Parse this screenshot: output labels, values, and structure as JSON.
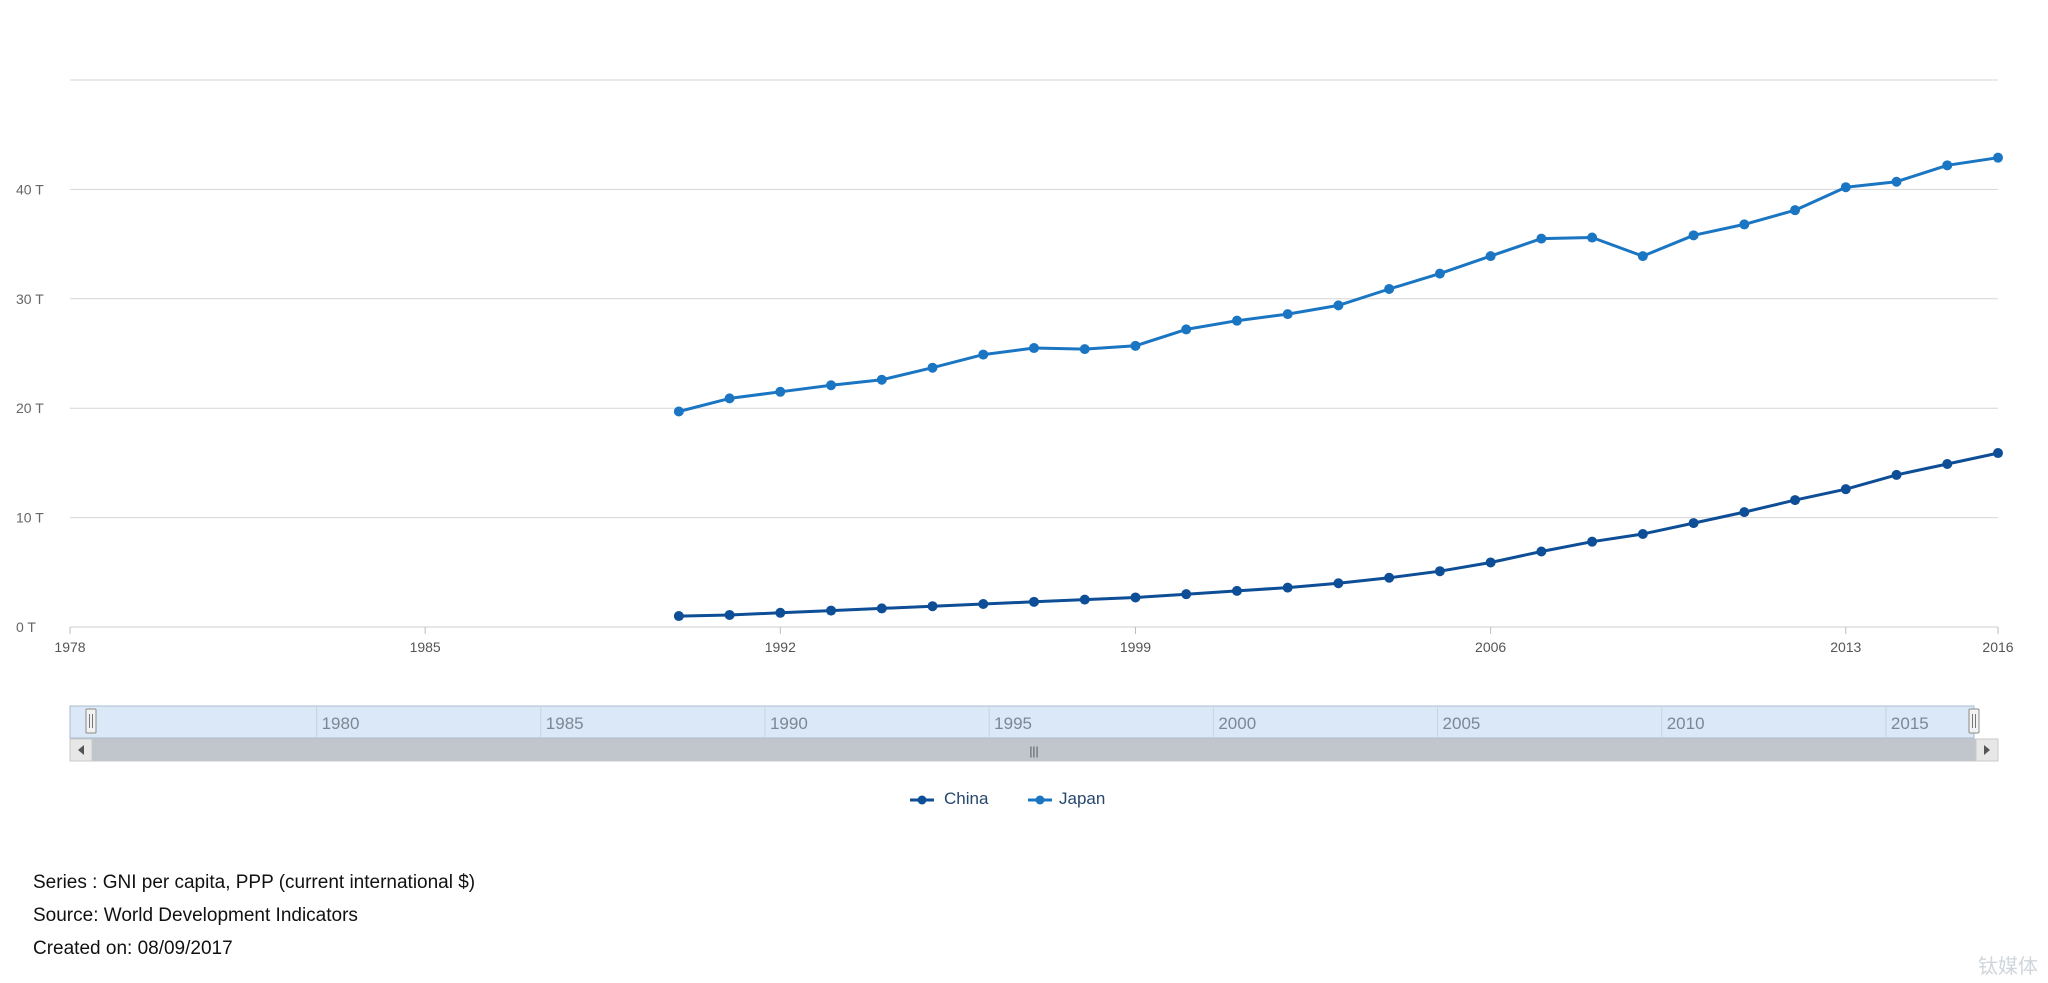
{
  "chart_data": {
    "type": "line",
    "x_axis": {
      "ticks": [
        1978,
        1985,
        1992,
        1999,
        2006,
        2013,
        2016
      ]
    },
    "y_axis": {
      "ticks": [
        "0 T",
        "10 T",
        "20 T",
        "30 T",
        "40 T"
      ],
      "ylim": [
        0,
        50000
      ]
    },
    "grid": true,
    "legend_position": "bottom-center",
    "x": [
      1990,
      1991,
      1992,
      1993,
      1994,
      1995,
      1996,
      1997,
      1998,
      1999,
      2000,
      2001,
      2002,
      2003,
      2004,
      2005,
      2006,
      2007,
      2008,
      2009,
      2010,
      2011,
      2012,
      2013,
      2014,
      2015,
      2016
    ],
    "series": [
      {
        "name": "China",
        "color": "#0d4e96",
        "values": [
          1000,
          1100,
          1300,
          1500,
          1700,
          1900,
          2100,
          2300,
          2500,
          2700,
          3000,
          3300,
          3600,
          4000,
          4500,
          5100,
          5900,
          6900,
          7800,
          8500,
          9500,
          10500,
          11600,
          12600,
          13900,
          14900,
          15900
        ]
      },
      {
        "name": "Japan",
        "color": "#1a76c2",
        "values": [
          19700,
          20900,
          21500,
          22100,
          22600,
          23700,
          24900,
          25500,
          25400,
          25700,
          27200,
          28000,
          28600,
          29400,
          30900,
          32300,
          33900,
          35500,
          35600,
          33900,
          35800,
          36800,
          38100,
          40200,
          40700,
          42200,
          42900
        ]
      }
    ],
    "navigator": {
      "ticks": [
        "1980",
        "1985",
        "1990",
        "1995",
        "2000",
        "2005",
        "2010",
        "2015"
      ],
      "ranger_glyph": "|||"
    }
  },
  "footer": {
    "series": "Series : GNI per capita, PPP (current international $)",
    "source": "Source: World Development Indicators",
    "created": "Created on: 08/09/2017"
  },
  "watermark": "钛媒体"
}
